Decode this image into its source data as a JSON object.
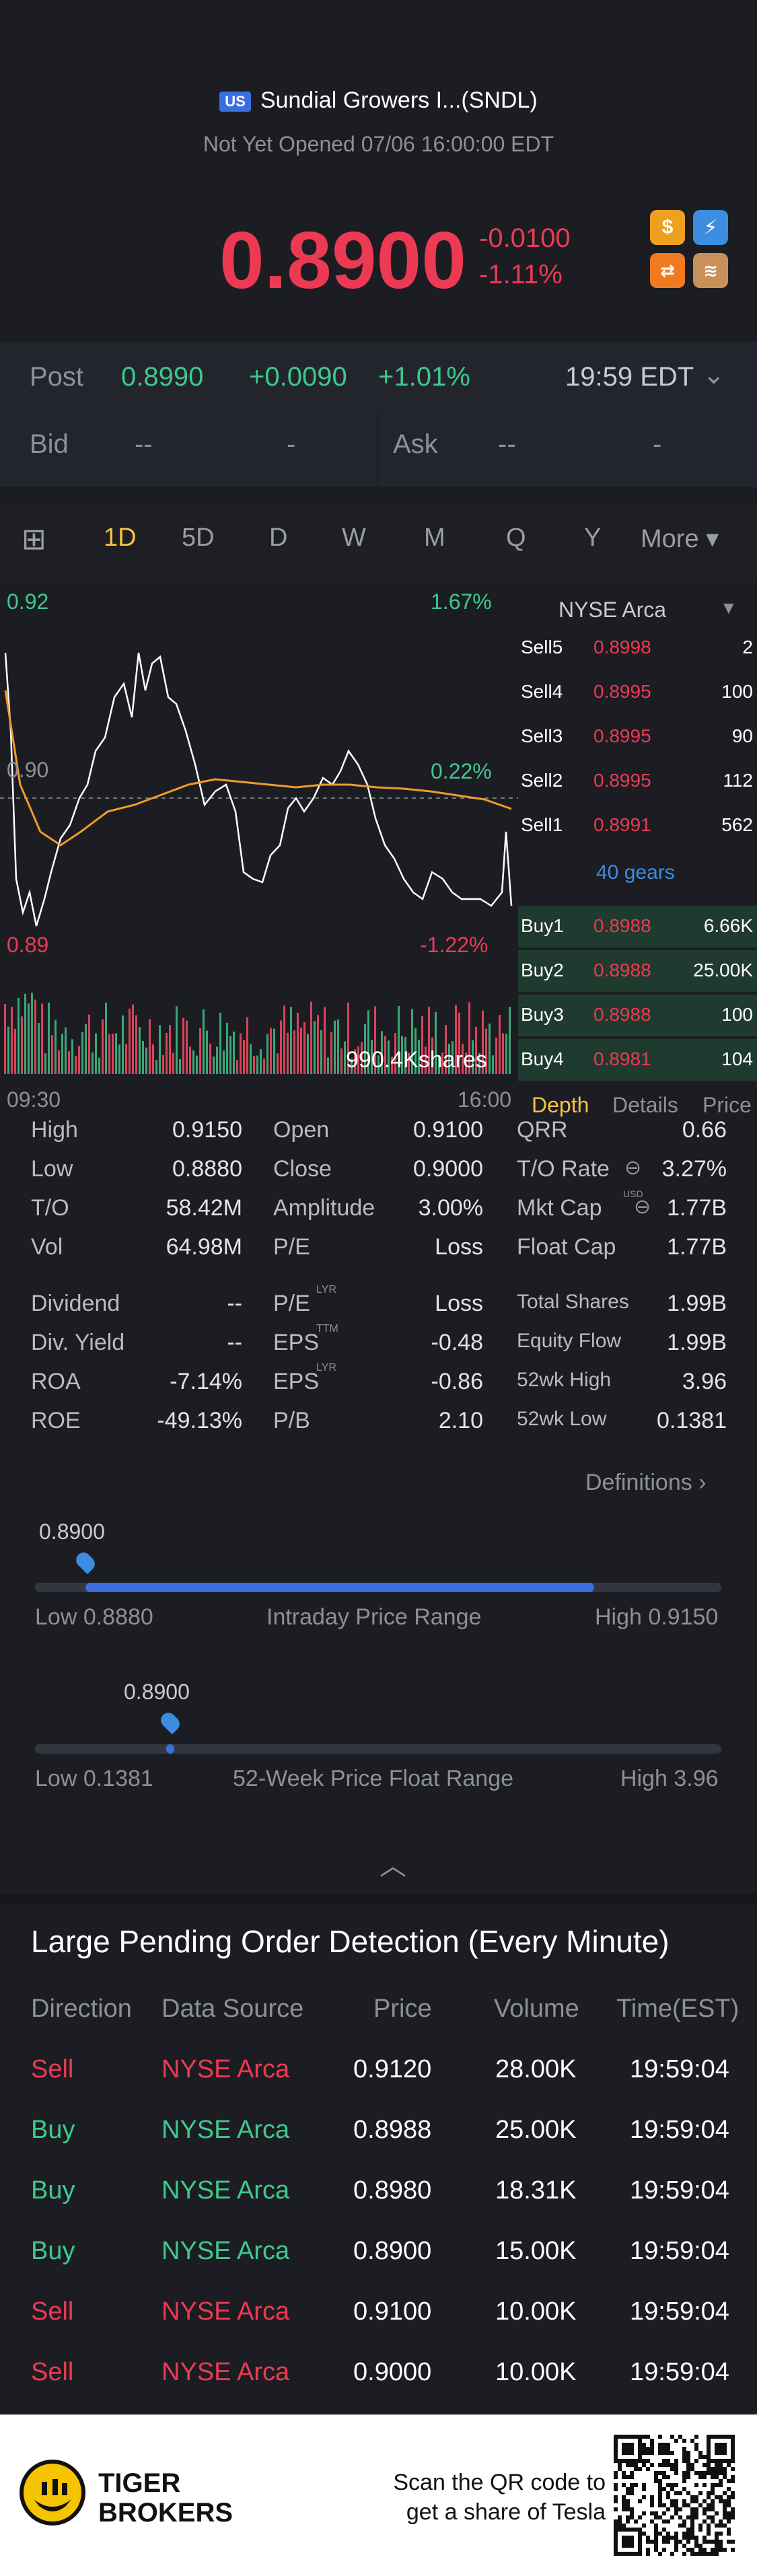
{
  "header": {
    "market_flag": "US",
    "stock_name": "Sundial Growers I...(SNDL)",
    "status": "Not Yet Opened 07/06 16:00:00 EDT",
    "price": "0.8900",
    "change": "-0.0100",
    "change_pct": "-1.11%",
    "badges": [
      "$",
      "⚡"
    ]
  },
  "post": {
    "label": "Post",
    "price": "0.8990",
    "change": "+0.0090",
    "pct": "+1.01%",
    "time": "19:59 EDT"
  },
  "bidask": {
    "bid_label": "Bid",
    "bid_price": "--",
    "bid_size": "-",
    "ask_label": "Ask",
    "ask_price": "--",
    "ask_size": "-"
  },
  "tabs": [
    "1D",
    "5D",
    "D",
    "W",
    "M",
    "Q",
    "Y",
    "More"
  ],
  "active_tab": "1D",
  "chart": {
    "top_left": "0.92",
    "top_right": "1.67%",
    "mid_left": "0.90",
    "mid_right": "0.22%",
    "bottom_left": "0.89",
    "bottom_right": "-1.22%",
    "volume_label": "990.4Kshares",
    "time_start": "09:30",
    "time_end": "16:00",
    "exchange": "NYSE Arca",
    "sells": [
      {
        "label": "Sell5",
        "price": "0.8998",
        "size": "2"
      },
      {
        "label": "Sell4",
        "price": "0.8995",
        "size": "100"
      },
      {
        "label": "Sell3",
        "price": "0.8995",
        "size": "90"
      },
      {
        "label": "Sell2",
        "price": "0.8995",
        "size": "112"
      },
      {
        "label": "Sell1",
        "price": "0.8991",
        "size": "562"
      }
    ],
    "gears": "40 gears",
    "buys": [
      {
        "label": "Buy1",
        "price": "0.8988",
        "size": "6.66K"
      },
      {
        "label": "Buy2",
        "price": "0.8988",
        "size": "25.00K"
      },
      {
        "label": "Buy3",
        "price": "0.8988",
        "size": "100"
      },
      {
        "label": "Buy4",
        "price": "0.8981",
        "size": "104"
      }
    ],
    "subtabs": [
      "Depth",
      "Details",
      "Price"
    ]
  },
  "stats": {
    "col1": [
      [
        "High",
        "0.9150"
      ],
      [
        "Low",
        "0.8880"
      ],
      [
        "T/O",
        "58.42M"
      ],
      [
        "Vol",
        "64.98M"
      ],
      [
        "Dividend",
        "--"
      ],
      [
        "Div. Yield",
        "--"
      ],
      [
        "ROA",
        "-7.14%"
      ],
      [
        "ROE",
        "-49.13%"
      ]
    ],
    "col2": [
      [
        "Open",
        "0.9100"
      ],
      [
        "Close",
        "0.9000"
      ],
      [
        "Amplitude",
        "3.00%"
      ],
      [
        "P/E",
        "Loss"
      ],
      [
        "P/E",
        "Loss"
      ],
      [
        "EPS",
        "-0.48"
      ],
      [
        "EPS",
        "-0.86"
      ],
      [
        "P/B",
        "2.10"
      ]
    ],
    "col2_sup": [
      "",
      "",
      "",
      "",
      "LYR",
      "TTM",
      "LYR",
      ""
    ],
    "col3": [
      [
        "QRR",
        "0.66"
      ],
      [
        "T/O Rate",
        "3.27%"
      ],
      [
        "Mkt Cap",
        "1.77B"
      ],
      [
        "Float Cap",
        "1.77B"
      ],
      [
        "Total Shares",
        "1.99B"
      ],
      [
        "Equity Flow",
        "1.99B"
      ],
      [
        "52wk High",
        "3.96"
      ],
      [
        "52wk Low",
        "0.1381"
      ]
    ],
    "mktcap_sup": "USD",
    "definitions": "Definitions"
  },
  "range": {
    "intraday_marker": "0.8900",
    "intraday_low": "Low 0.8880",
    "intraday_title": "Intraday Price Range",
    "intraday_high": "High 0.9150",
    "intraday_pos": 0.074,
    "intraday_fill_end": 0.815,
    "week_marker": "0.8900",
    "week_low": "Low 0.1381",
    "week_title": "52-Week Price Float Range",
    "week_high": "High 3.96",
    "week_pos": 0.197
  },
  "orders": {
    "title": "Large Pending Order Detection (Every Minute)",
    "headers": [
      "Direction",
      "Data Source",
      "Price",
      "Volume",
      "Time(EST)"
    ],
    "rows": [
      {
        "dir": "Sell",
        "src": "NYSE Arca",
        "price": "0.9120",
        "vol": "28.00K",
        "time": "19:59:04"
      },
      {
        "dir": "Buy",
        "src": "NYSE Arca",
        "price": "0.8988",
        "vol": "25.00K",
        "time": "19:59:04"
      },
      {
        "dir": "Buy",
        "src": "NYSE Arca",
        "price": "0.8980",
        "vol": "18.31K",
        "time": "19:59:04"
      },
      {
        "dir": "Buy",
        "src": "NYSE Arca",
        "price": "0.8900",
        "vol": "15.00K",
        "time": "19:59:04"
      },
      {
        "dir": "Sell",
        "src": "NYSE Arca",
        "price": "0.9100",
        "vol": "10.00K",
        "time": "19:59:04"
      },
      {
        "dir": "Sell",
        "src": "NYSE Arca",
        "price": "0.9000",
        "vol": "10.00K",
        "time": "19:59:04"
      }
    ]
  },
  "footer": {
    "brand_line1": "TIGER",
    "brand_line2": "BROKERS",
    "cta_line1": "Scan the QR code to",
    "cta_line2": "get a share of Tesla"
  },
  "colors": {
    "up": "#3ec98c",
    "down": "#ec3a52",
    "accent": "#f5c243",
    "blue": "#3b6fe0"
  }
}
